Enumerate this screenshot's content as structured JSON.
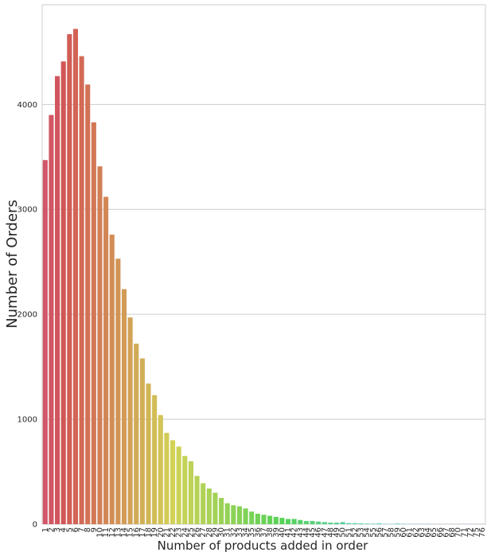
{
  "chart_data": {
    "type": "bar",
    "title": "",
    "xlabel": "Number of products added in order",
    "ylabel": "Number of Orders",
    "ylim": [
      0,
      4950
    ],
    "yticks": [
      0,
      1000,
      2000,
      3000,
      4000
    ],
    "grid": "horizontal",
    "categories": [
      "1",
      "2",
      "3",
      "4",
      "5",
      "6",
      "7",
      "8",
      "9",
      "10",
      "11",
      "12",
      "13",
      "14",
      "15",
      "16",
      "17",
      "18",
      "19",
      "20",
      "21",
      "22",
      "23",
      "24",
      "25",
      "26",
      "27",
      "28",
      "29",
      "30",
      "31",
      "32",
      "33",
      "34",
      "35",
      "36",
      "37",
      "38",
      "39",
      "40",
      "41",
      "42",
      "43",
      "44",
      "45",
      "46",
      "47",
      "48",
      "49",
      "50",
      "51",
      "52",
      "53",
      "54",
      "55",
      "56",
      "57",
      "58",
      "59",
      "60",
      "61",
      "62",
      "63",
      "64",
      "65",
      "66",
      "67",
      "68",
      "70",
      "71",
      "72",
      "75",
      "76"
    ],
    "values": [
      3470,
      3900,
      4270,
      4410,
      4670,
      4720,
      4460,
      4190,
      3830,
      3410,
      3120,
      2760,
      2530,
      2240,
      1970,
      1720,
      1580,
      1340,
      1230,
      1040,
      870,
      800,
      740,
      650,
      600,
      460,
      390,
      340,
      300,
      250,
      200,
      180,
      170,
      150,
      120,
      100,
      90,
      80,
      70,
      60,
      50,
      50,
      40,
      30,
      30,
      25,
      20,
      15,
      15,
      20,
      10,
      10,
      8,
      6,
      5,
      8,
      4,
      3,
      6,
      3,
      2,
      2,
      2,
      2,
      1,
      1,
      1,
      1,
      1,
      1,
      1,
      1,
      1
    ]
  }
}
